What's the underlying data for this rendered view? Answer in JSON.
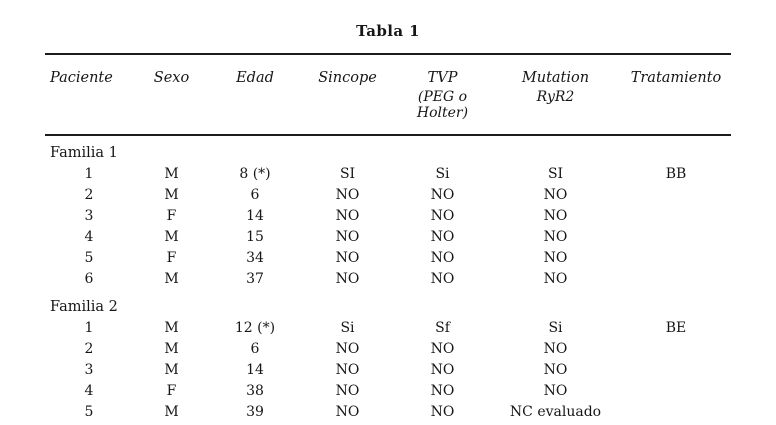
{
  "table": {
    "title": "Tabla 1",
    "columns": [
      {
        "label": "Paciente",
        "sub": ""
      },
      {
        "label": "Sexo",
        "sub": ""
      },
      {
        "label": "Edad",
        "sub": ""
      },
      {
        "label": "Sincope",
        "sub": ""
      },
      {
        "label": "TVP",
        "sub": "(PEG o Holter)"
      },
      {
        "label": "Mutation",
        "sub": "RyR2"
      },
      {
        "label": "Tratamiento",
        "sub": ""
      }
    ],
    "groups": [
      {
        "label": "Familia 1",
        "rows": [
          [
            "1",
            "M",
            "8 (*)",
            "SI",
            "Si",
            "SI",
            "BB"
          ],
          [
            "2",
            "M",
            "6",
            "NO",
            "NO",
            "NO",
            ""
          ],
          [
            "3",
            "F",
            "14",
            "NO",
            "NO",
            "NO",
            ""
          ],
          [
            "4",
            "M",
            "15",
            "NO",
            "NO",
            "NO",
            ""
          ],
          [
            "5",
            "F",
            "34",
            "NO",
            "NO",
            "NO",
            ""
          ],
          [
            "6",
            "M",
            "37",
            "NO",
            "NO",
            "NO",
            ""
          ]
        ]
      },
      {
        "label": "Familia 2",
        "rows": [
          [
            "1",
            "M",
            "12 (*)",
            "Si",
            "Sf",
            "Si",
            "BE"
          ],
          [
            "2",
            "M",
            "6",
            "NO",
            "NO",
            "NO",
            ""
          ],
          [
            "3",
            "M",
            "14",
            "NO",
            "NO",
            "NO",
            ""
          ],
          [
            "4",
            "F",
            "38",
            "NO",
            "NO",
            "NO",
            ""
          ],
          [
            "5",
            "M",
            "39",
            "NO",
            "NO",
            "NC evaluado",
            ""
          ]
        ]
      }
    ]
  }
}
